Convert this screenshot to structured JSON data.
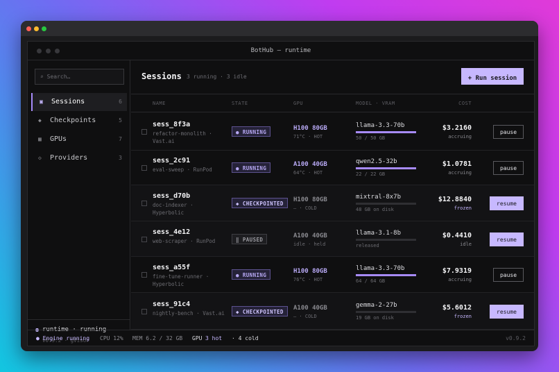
{
  "window": {
    "title": "BotHub — runtime"
  },
  "search": {
    "placeholder": "⌕ Search…"
  },
  "sidebar": {
    "items": [
      {
        "icon": "▣",
        "label": "Sessions",
        "count": "6"
      },
      {
        "icon": "◆",
        "label": "Checkpoints",
        "count": "5"
      },
      {
        "icon": "▦",
        "label": "GPUs",
        "count": "7"
      },
      {
        "icon": "◇",
        "label": "Providers",
        "count": "3"
      }
    ],
    "footer": {
      "status": "runtime · running",
      "version": "v0.9.2 · gVisor"
    }
  },
  "header": {
    "title": "Sessions",
    "subtitle": "3 running · 3 idle",
    "run_button": "+ Run session"
  },
  "columns": {
    "name": "NAME",
    "state": "STATE",
    "gpu": "GPU",
    "model": "MODEL · VRAM",
    "cost": "COST"
  },
  "sessions": [
    {
      "name": "sess_8f3a",
      "desc": "refactor-monolith · Vast.ai",
      "state": "● RUNNING",
      "gpu": "H100 80GB",
      "gpu_sub": "71°C · HOT",
      "model": "llama-3.3-70b",
      "vram": "50 / 50 GB",
      "vram_fill": 1.0,
      "cost": "$3.2160",
      "cost_status": "accruing",
      "action": "pause"
    },
    {
      "name": "sess_2c91",
      "desc": "eval-sweep · RunPod",
      "state": "● RUNNING",
      "gpu": "A100 40GB",
      "gpu_sub": "64°C · HOT",
      "model": "qwen2.5-32b",
      "vram": "22 / 22 GB",
      "vram_fill": 1.0,
      "cost": "$1.0781",
      "cost_status": "accruing",
      "action": "pause"
    },
    {
      "name": "sess_d70b",
      "desc": "doc-indexer · Hyperbolic",
      "state": "◆ CHECKPOINTED",
      "gpu": "H100 80GB",
      "gpu_sub": "— · COLD",
      "model": "mixtral-8x7b",
      "vram": "48 GB on disk",
      "vram_fill": 0.0,
      "cost": "$12.8840",
      "cost_status": "frozen",
      "action": "resume"
    },
    {
      "name": "sess_4e12",
      "desc": "web-scraper · RunPod",
      "state": "‖ PAUSED",
      "gpu": "A100 40GB",
      "gpu_sub": "idle · held",
      "model": "llama-3.1-8b",
      "vram": "released",
      "vram_fill": 0.0,
      "cost": "$0.4410",
      "cost_status": "idle",
      "action": "resume"
    },
    {
      "name": "sess_a55f",
      "desc": "fine-tune-runner · Hyperbolic",
      "state": "● RUNNING",
      "gpu": "H100 80GB",
      "gpu_sub": "76°C · HOT",
      "model": "llama-3.3-70b",
      "vram": "64 / 64 GB",
      "vram_fill": 1.0,
      "cost": "$7.9319",
      "cost_status": "accruing",
      "action": "pause"
    },
    {
      "name": "sess_91c4",
      "desc": "nightly-bench · Vast.ai",
      "state": "◆ CHECKPOINTED",
      "gpu": "A100 40GB",
      "gpu_sub": "— · COLD",
      "model": "gemma-2-27b",
      "vram": "19 GB on disk",
      "vram_fill": 0.0,
      "cost": "$5.6012",
      "cost_status": "frozen",
      "action": "resume"
    }
  ],
  "statusbar": {
    "engine": "● Engine running",
    "cpu": "CPU 12%",
    "mem": "MEM 6.2 / 32 GB",
    "gpu_label": "GPU",
    "gpu_hot": "3 hot",
    "gpu_cold": "· 4 cold",
    "version": "v0.9.2"
  },
  "colors": {
    "accent": "#a78bfa",
    "accent_light": "#c7b8ff",
    "hot_gpu": "#b8a9f5",
    "muted": "#6c6c72"
  }
}
